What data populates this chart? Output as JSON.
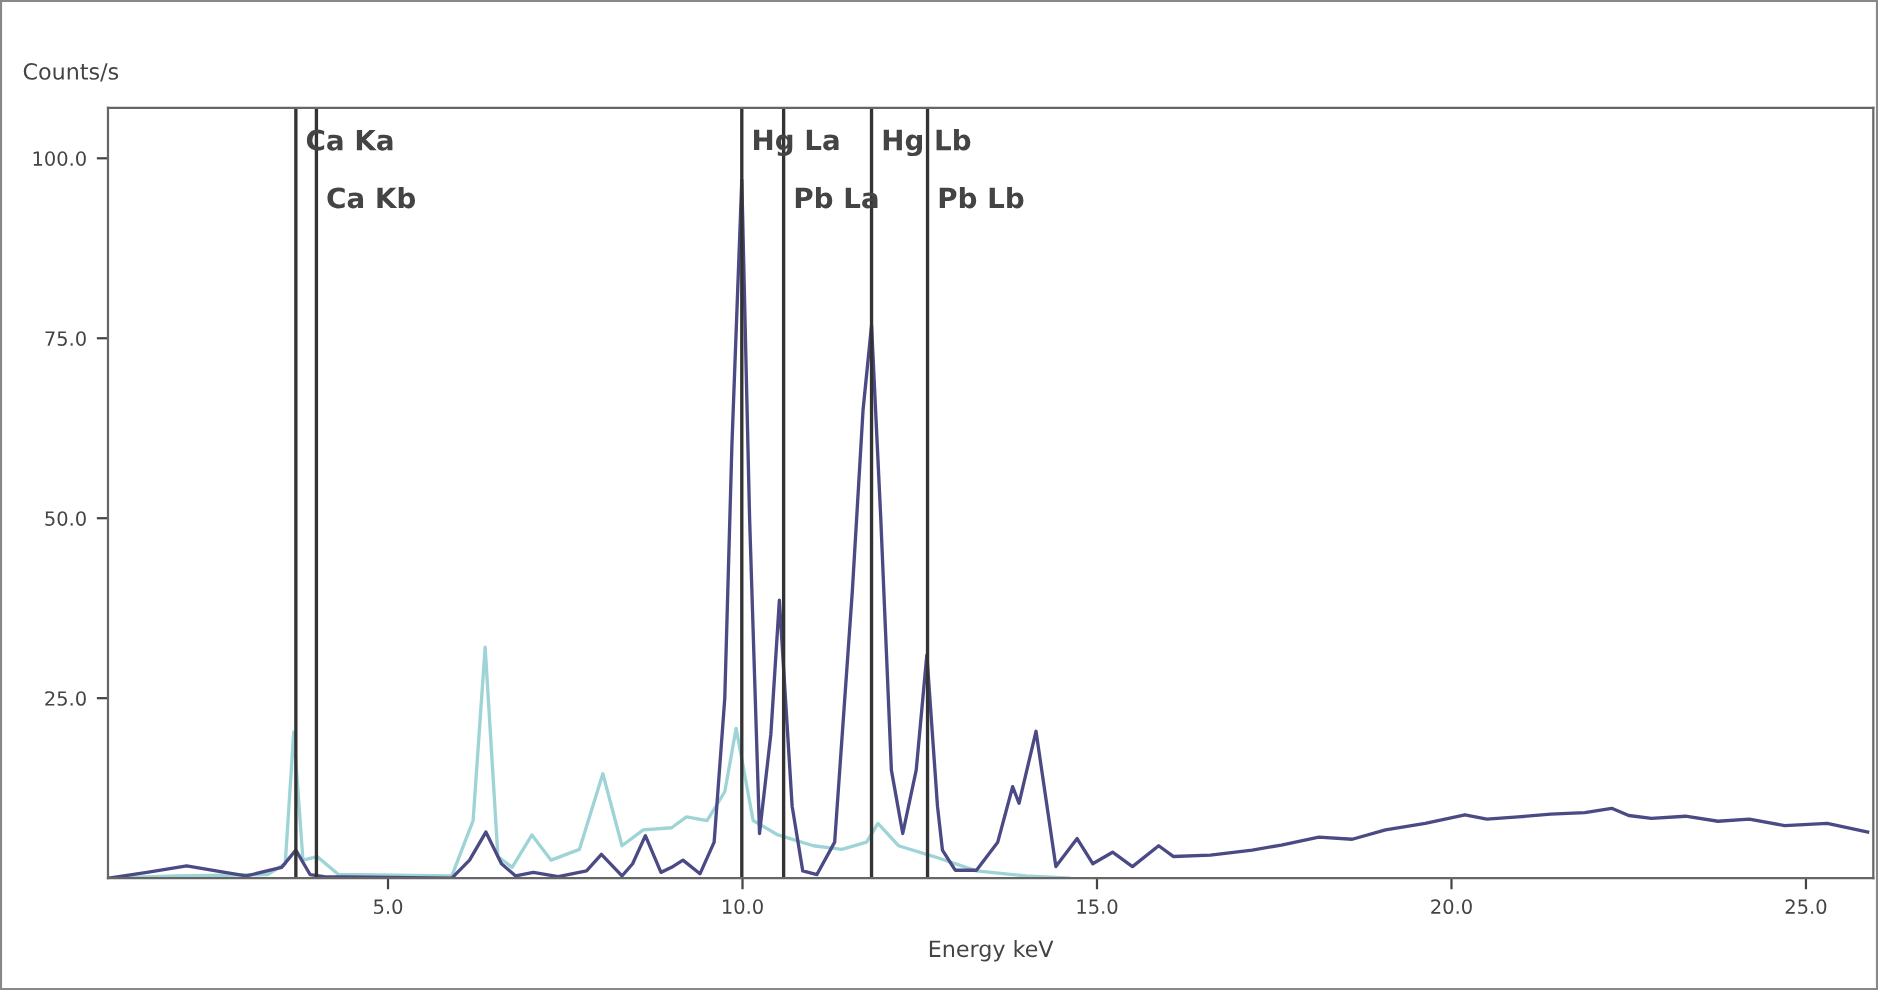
{
  "chart_data": {
    "type": "line",
    "xlabel": "Energy keV",
    "ylabel": "Counts/s",
    "xlim": [
      1.05,
      25.95
    ],
    "ylim": [
      0,
      107
    ],
    "xticks": [
      {
        "value": 5,
        "label": "5.0"
      },
      {
        "value": 10,
        "label": "10.0"
      },
      {
        "value": 15,
        "label": "15.0"
      },
      {
        "value": 20,
        "label": "20.0"
      },
      {
        "value": 25,
        "label": "25.0"
      }
    ],
    "yticks": [
      {
        "value": 25,
        "label": "25.0"
      },
      {
        "value": 50,
        "label": "50.0"
      },
      {
        "value": 75,
        "label": "75.0"
      },
      {
        "value": 100,
        "label": "100.0"
      }
    ],
    "grid": false,
    "legend": false,
    "marker": "none",
    "line_style": "solid",
    "series": [
      {
        "color": "#9ed4d6",
        "x": [
          1.06,
          2.0,
          3.3,
          3.55,
          3.67,
          3.8,
          4.0,
          4.3,
          5.9,
          6.2,
          6.37,
          6.55,
          6.75,
          7.03,
          7.3,
          7.7,
          8.03,
          8.3,
          8.6,
          9.0,
          9.21,
          9.5,
          9.75,
          9.91,
          10.15,
          10.5,
          11.0,
          11.4,
          11.75,
          11.91,
          12.2,
          12.7,
          13.3,
          14.0,
          14.6
        ],
        "values": [
          0,
          0.3,
          0.5,
          2,
          20.3,
          2.5,
          3,
          0.5,
          0.3,
          8,
          32.1,
          3,
          1.5,
          6,
          2.5,
          4,
          14.5,
          4.5,
          6.7,
          7,
          8.5,
          8,
          12,
          20.8,
          8,
          6,
          4.5,
          4,
          5,
          7.6,
          4.5,
          3,
          1,
          0.3,
          0
        ]
      },
      {
        "color": "#4b4a85",
        "x": [
          1.06,
          1.6,
          2.16,
          2.7,
          3.0,
          3.5,
          3.7,
          3.9,
          4.1,
          5.9,
          6.15,
          6.38,
          6.6,
          6.8,
          7.05,
          7.4,
          7.8,
          8.01,
          8.3,
          8.45,
          8.63,
          8.85,
          9.0,
          9.16,
          9.4,
          9.6,
          9.75,
          9.85,
          9.99,
          10.1,
          10.24,
          10.4,
          10.52,
          10.7,
          10.85,
          11.05,
          11.3,
          11.55,
          11.7,
          11.82,
          11.95,
          12.1,
          12.26,
          12.45,
          12.6,
          12.75,
          12.82,
          13.0,
          13.3,
          13.6,
          13.81,
          13.9,
          14.14,
          14.42,
          14.72,
          14.94,
          15.22,
          15.5,
          15.87,
          16.08,
          16.6,
          17.19,
          17.6,
          18.13,
          18.6,
          19.07,
          19.63,
          20.19,
          20.5,
          20.94,
          21.4,
          21.88,
          22.26,
          22.5,
          22.82,
          23.3,
          23.76,
          24.2,
          24.7,
          25.3,
          25.87
        ],
        "values": [
          0,
          0.8,
          1.7,
          0.8,
          0.3,
          1.5,
          3.9,
          0.5,
          0.2,
          0,
          2.5,
          6.4,
          2,
          0.3,
          0.8,
          0.2,
          1,
          3.3,
          0.3,
          2,
          5.9,
          0.8,
          1.5,
          2.5,
          0.6,
          5,
          25,
          60,
          97,
          50,
          6.2,
          20,
          38.6,
          10,
          1,
          0.5,
          5,
          40,
          65,
          76.8,
          50,
          15,
          6.2,
          15,
          31,
          10,
          3.9,
          1.1,
          1.1,
          5,
          12.7,
          10.4,
          20.4,
          1.6,
          5.5,
          2,
          3.6,
          1.6,
          4.5,
          3,
          3.2,
          3.9,
          4.6,
          5.7,
          5.4,
          6.7,
          7.6,
          8.8,
          8.2,
          8.5,
          8.9,
          9.1,
          9.7,
          8.7,
          8.3,
          8.6,
          7.9,
          8.2,
          7.3,
          7.6,
          6.4
        ]
      }
    ],
    "ref_lines": [
      {
        "axis": "x",
        "value": 3.7,
        "label": "Ca Ka",
        "color": "#333333"
      },
      {
        "axis": "x",
        "value": 3.99,
        "label": "Ca Kb",
        "color": "#333333"
      },
      {
        "axis": "x",
        "value": 9.99,
        "label": "Hg La",
        "color": "#333333"
      },
      {
        "axis": "x",
        "value": 10.58,
        "label": "Pb La",
        "color": "#333333"
      },
      {
        "axis": "x",
        "value": 11.82,
        "label": "Hg Lb",
        "color": "#333333"
      },
      {
        "axis": "x",
        "value": 12.61,
        "label": "Pb Lb",
        "color": "#333333"
      }
    ]
  }
}
